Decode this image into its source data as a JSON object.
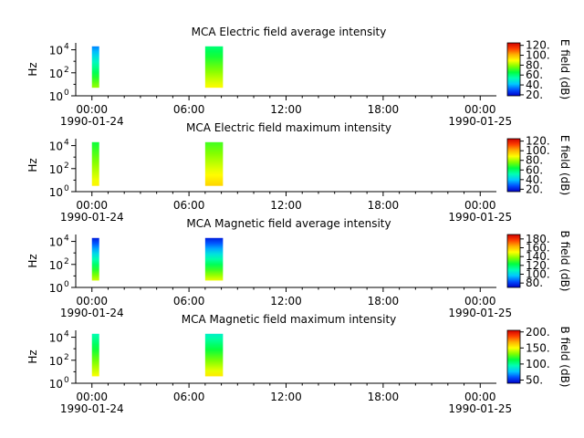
{
  "colors": {
    "background": "#ffffff",
    "axes": "#000000",
    "colormap": [
      "#0000c8",
      "#0050ff",
      "#00c8ff",
      "#00ffb4",
      "#00ff40",
      "#80ff00",
      "#ffff00",
      "#ffb000",
      "#ff4000",
      "#d00000"
    ]
  },
  "chart_data": [
    {
      "type": "heatmap",
      "title": "MCA  Electric field average intensity",
      "ylabel": "Hz",
      "colorbar_label": "E field (dB)",
      "colorbar_ticks": [
        "20.",
        "40.",
        "60.",
        "80.",
        "100.",
        "120."
      ],
      "colorbar_range": [
        18,
        125
      ],
      "x_tick_labels": [
        "00:00",
        "06:00",
        "12:00",
        "18:00",
        "00:00"
      ],
      "x_tick_dates": [
        "1990-01-24",
        "1990-01-25"
      ],
      "y_tick_labels": [
        {
          "base": "10",
          "exp": "0"
        },
        {
          "base": "10",
          "exp": "2"
        },
        {
          "base": "10",
          "exp": "4"
        }
      ],
      "x_range_hours": [
        -1,
        25
      ],
      "y_range_log10": [
        0,
        4.6
      ],
      "blocks": [
        {
          "start_hour": 0.0,
          "end_hour": 0.45,
          "fmin_log10": 0.7,
          "fmax_log10": 4.3,
          "low_value": 80,
          "high_value": 35
        },
        {
          "start_hour": 7.0,
          "end_hour": 8.1,
          "fmin_log10": 0.7,
          "fmax_log10": 4.3,
          "low_value": 90,
          "high_value": 60
        }
      ]
    },
    {
      "type": "heatmap",
      "title": "MCA  Electric field maximum intensity",
      "ylabel": "Hz",
      "colorbar_label": "E field (dB)",
      "colorbar_ticks": [
        "20.",
        "40.",
        "60.",
        "80.",
        "100.",
        "120."
      ],
      "colorbar_range": [
        15,
        125
      ],
      "x_tick_labels": [
        "00:00",
        "06:00",
        "12:00",
        "18:00",
        "00:00"
      ],
      "x_tick_dates": [
        "1990-01-24",
        "1990-01-25"
      ],
      "y_tick_labels": [
        {
          "base": "10",
          "exp": "0"
        },
        {
          "base": "10",
          "exp": "2"
        },
        {
          "base": "10",
          "exp": "4"
        }
      ],
      "x_range_hours": [
        -1,
        25
      ],
      "y_range_log10": [
        0,
        4.6
      ],
      "blocks": [
        {
          "start_hour": 0.0,
          "end_hour": 0.45,
          "fmin_log10": 0.5,
          "fmax_log10": 4.3,
          "low_value": 90,
          "high_value": 65
        },
        {
          "start_hour": 7.0,
          "end_hour": 8.1,
          "fmin_log10": 0.5,
          "fmax_log10": 4.3,
          "low_value": 95,
          "high_value": 70
        }
      ]
    },
    {
      "type": "heatmap",
      "title": "MCA  Magnetic field average intensity",
      "ylabel": "Hz",
      "colorbar_label": "B field (dB)",
      "colorbar_ticks": [
        "80.",
        "100.",
        "120.",
        "140.",
        "160.",
        "180."
      ],
      "colorbar_range": [
        70,
        190
      ],
      "x_tick_labels": [
        "00:00",
        "06:00",
        "12:00",
        "18:00",
        "00:00"
      ],
      "x_tick_dates": [
        "1990-01-24",
        "1990-01-25"
      ],
      "y_tick_labels": [
        {
          "base": "10",
          "exp": "0"
        },
        {
          "base": "10",
          "exp": "2"
        },
        {
          "base": "10",
          "exp": "4"
        }
      ],
      "x_range_hours": [
        -1,
        25
      ],
      "y_range_log10": [
        0,
        4.6
      ],
      "blocks": [
        {
          "start_hour": 0.0,
          "end_hour": 0.45,
          "fmin_log10": 0.6,
          "fmax_log10": 4.3,
          "low_value": 145,
          "high_value": 75
        },
        {
          "start_hour": 7.0,
          "end_hour": 8.1,
          "fmin_log10": 0.6,
          "fmax_log10": 4.3,
          "low_value": 148,
          "high_value": 75
        }
      ]
    },
    {
      "type": "heatmap",
      "title": "MCA  Magnetic field maximum intensity",
      "ylabel": "Hz",
      "colorbar_label": "B field (dB)",
      "colorbar_ticks": [
        "50.",
        "100.",
        "150.",
        "200."
      ],
      "colorbar_range": [
        40,
        205
      ],
      "x_tick_labels": [
        "00:00",
        "06:00",
        "12:00",
        "18:00",
        "00:00"
      ],
      "x_tick_dates": [
        "1990-01-24",
        "1990-01-25"
      ],
      "y_tick_labels": [
        {
          "base": "10",
          "exp": "0"
        },
        {
          "base": "10",
          "exp": "2"
        },
        {
          "base": "10",
          "exp": "4"
        }
      ],
      "x_range_hours": [
        -1,
        25
      ],
      "y_range_log10": [
        0,
        4.6
      ],
      "blocks": [
        {
          "start_hour": 0.0,
          "end_hour": 0.45,
          "fmin_log10": 0.6,
          "fmax_log10": 4.3,
          "low_value": 150,
          "high_value": 95
        },
        {
          "start_hour": 7.0,
          "end_hour": 8.1,
          "fmin_log10": 0.6,
          "fmax_log10": 4.3,
          "low_value": 155,
          "high_value": 90
        }
      ]
    }
  ]
}
